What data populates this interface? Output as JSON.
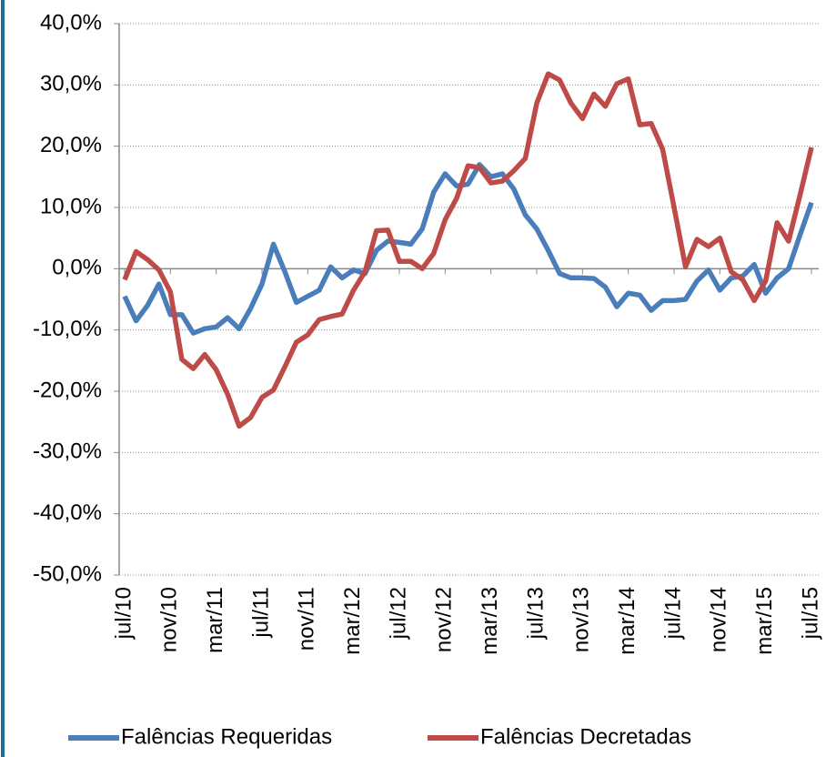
{
  "chart_data": {
    "type": "line",
    "categories": [
      "jul/10",
      null,
      null,
      null,
      "nov/10",
      null,
      null,
      null,
      "mar/11",
      null,
      null,
      null,
      "jul/11",
      null,
      null,
      null,
      "nov/11",
      null,
      null,
      null,
      "mar/12",
      null,
      null,
      null,
      "jul/12",
      null,
      null,
      null,
      "nov/12",
      null,
      null,
      null,
      "mar/13",
      null,
      null,
      null,
      "jul/13",
      null,
      null,
      null,
      "nov/13",
      null,
      null,
      null,
      "mar/14",
      null,
      null,
      null,
      "jul/14",
      null,
      null,
      null,
      "nov/14",
      null,
      null,
      null,
      "mar/15",
      null,
      null,
      null,
      "jul/15"
    ],
    "series": [
      {
        "name": "Falências Requeridas",
        "color": "#4a7ebb",
        "values": [
          -4.5,
          -8.5,
          -6,
          -2.5,
          -7.5,
          -7.5,
          -10.5,
          -9.8,
          -9.5,
          -8,
          -9.8,
          -6.5,
          -2.5,
          4,
          -0.5,
          -5.5,
          -4.5,
          -3.5,
          0.3,
          -1.5,
          -0.2,
          -0.8,
          3,
          4.5,
          4.3,
          4,
          6.5,
          12.5,
          15.5,
          13.5,
          13.8,
          17,
          15,
          15.5,
          13,
          8.8,
          6.5,
          3,
          -0.8,
          -1.5,
          -1.5,
          -1.6,
          -3,
          -6.2,
          -4,
          -4.3,
          -6.8,
          -5.2,
          -5.2,
          -5,
          -2,
          -0.2,
          -3.5,
          -1.5,
          -1.2,
          0.7,
          -4,
          -1.5,
          0,
          5.5,
          10.8
        ]
      },
      {
        "name": "Falências Decretadas",
        "color": "#be4b48",
        "values": [
          -1.8,
          2.8,
          1.5,
          -0.2,
          -3.8,
          -14.8,
          -16.3,
          -14,
          -16.5,
          -20.5,
          -25.7,
          -24.3,
          -21,
          -19.8,
          -16,
          -12,
          -10.8,
          -8.3,
          -7.8,
          -7.4,
          -3.5,
          -0.5,
          6.2,
          6.3,
          1.2,
          1.2,
          0,
          2.5,
          8,
          11.5,
          16.8,
          16.5,
          14,
          14.3,
          16,
          18,
          27,
          31.8,
          30.8,
          27,
          24.5,
          28.5,
          26.5,
          30.2,
          31,
          23.5,
          23.7,
          19.5,
          10,
          0.3,
          4.8,
          3.6,
          5,
          -0.5,
          -1.8,
          -5.2,
          -2,
          7.5,
          4.5,
          12,
          19.8
        ]
      }
    ],
    "ylim": [
      -50,
      40
    ],
    "yticks": [
      {
        "value": -50,
        "label": "-50,0%"
      },
      {
        "value": -40,
        "label": "-40,0%"
      },
      {
        "value": -30,
        "label": "-30,0%"
      },
      {
        "value": -20,
        "label": "-20,0%"
      },
      {
        "value": -10,
        "label": "-10,0%"
      },
      {
        "value": 0,
        "label": "0,0%"
      },
      {
        "value": 10,
        "label": "10,0%"
      },
      {
        "value": 20,
        "label": "20,0%"
      },
      {
        "value": 30,
        "label": "30,0%"
      },
      {
        "value": 40,
        "label": "40,0%"
      }
    ],
    "grid": true
  }
}
